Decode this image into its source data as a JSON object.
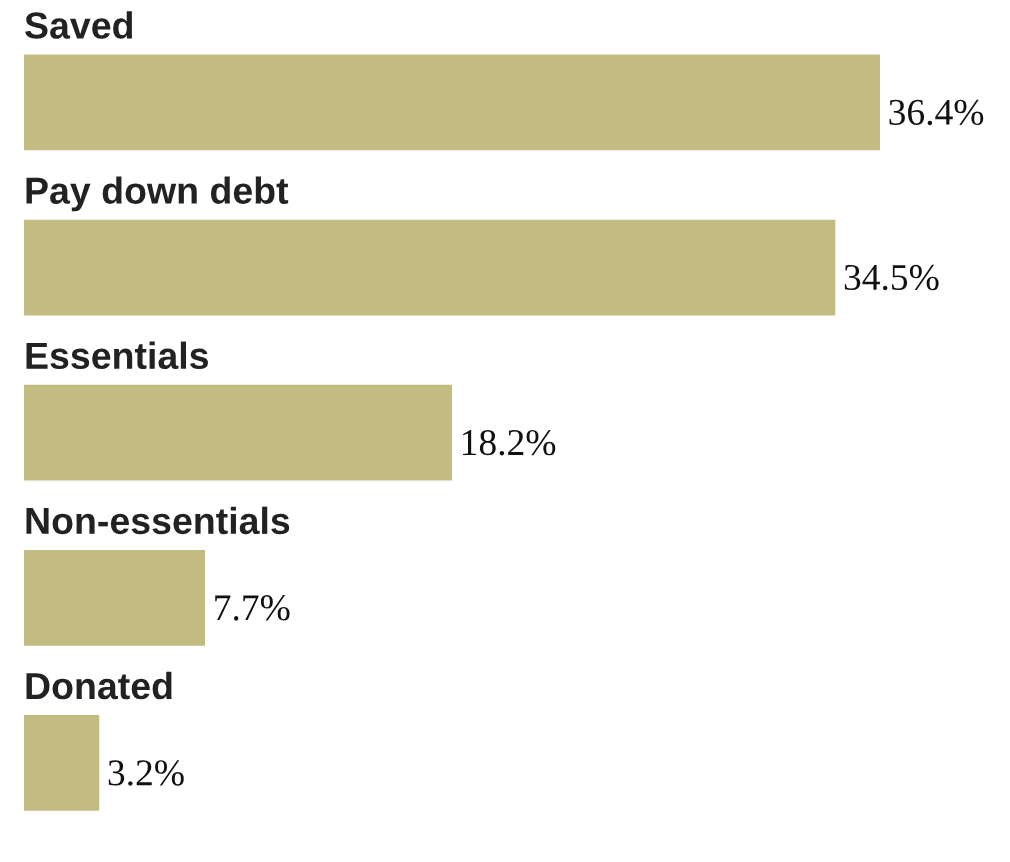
{
  "chart_data": {
    "type": "bar",
    "orientation": "horizontal",
    "categories": [
      "Saved",
      "Pay down debt",
      "Essentials",
      "Non-essentials",
      "Donated"
    ],
    "values": [
      36.4,
      34.5,
      18.2,
      7.7,
      3.2
    ],
    "value_labels": [
      "36.4%",
      "34.5%",
      "18.2%",
      "7.7%",
      "3.2%"
    ],
    "color": "#c2bb82"
  }
}
